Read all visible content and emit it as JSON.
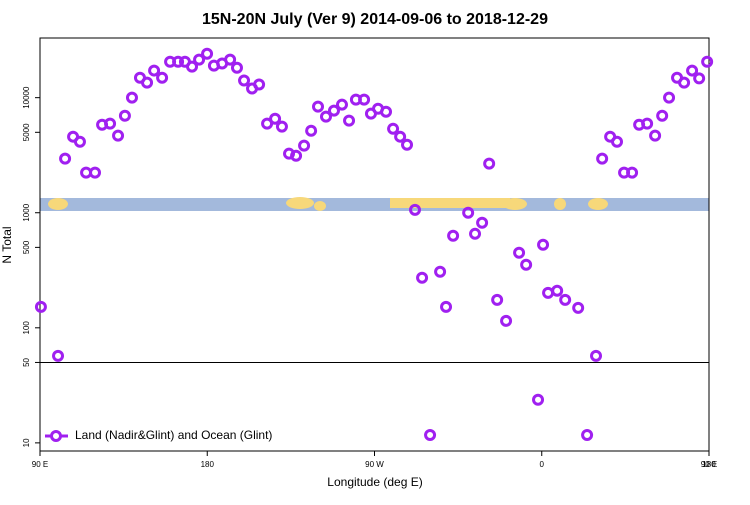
{
  "chart_data": {
    "type": "scatter",
    "title": "15N-20N July (Ver 9)   2014-09-06 to 2018-12-29",
    "x_label": "Longitude (deg E)",
    "y_label": "N Total",
    "log_y": true,
    "legend": "lower left",
    "reference_line": 50,
    "xlim": [
      90,
      450
    ],
    "xticks": [
      {
        "value": 90,
        "label": "90 E"
      },
      180,
      {
        "value": 270,
        "label": "90 W"
      },
      {
        "value": 360,
        "label": "0"
      },
      {
        "value": 450,
        "label": "90 E"
      },
      {
        "value": 540,
        "label": "180"
      }
    ],
    "ylim": [
      8.5,
      33000
    ],
    "yticks": [
      10,
      50,
      100,
      500,
      1000,
      5000,
      10000
    ],
    "series": [
      {
        "name": "Land (Nadir&Glint) and Ocean (Glint)",
        "color": "#a020f0",
        "x": [
          90.5,
          99.7,
          103.5,
          107.8,
          111.5,
          114.8,
          119.6,
          123.4,
          127.7,
          132,
          135.7,
          139.5,
          143.8,
          147.6,
          151.4,
          155.7,
          160,
          164.3,
          168,
          171.8,
          175.6,
          179.9,
          183.6,
          188,
          192.3,
          196,
          199.8,
          204.1,
          207.9,
          212.2,
          216.5,
          220.2,
          224,
          227.8,
          232.1,
          235.9,
          239.6,
          243.9,
          248.2,
          252.5,
          256.3,
          260,
          264.4,
          268.1,
          271.9,
          276.2,
          280,
          283.8,
          287.5,
          291.8,
          295.6,
          299.9,
          305.3,
          308.5,
          312.3,
          320.4,
          324.1,
          327.9,
          331.7,
          336,
          340.8,
          347.8,
          351.6,
          358,
          360.7,
          363.4,
          368.3,
          372.6,
          379.6,
          384.4,
          389.2,
          392.5,
          396.8,
          400.5,
          404.3,
          408.6,
          412.4,
          416.7,
          421,
          424.8,
          428.5,
          432.8,
          436.6,
          440.9,
          444.7,
          449
        ],
        "values": [
          152,
          57,
          2950,
          4580,
          4140,
          2230,
          2230,
          5820,
          5950,
          4680,
          6970,
          10000,
          14900,
          13500,
          17200,
          14900,
          20500,
          20500,
          20500,
          18600,
          21400,
          24100,
          19000,
          19800,
          21400,
          18200,
          14100,
          12000,
          13000,
          5950,
          6560,
          5600,
          3260,
          3130,
          3830,
          5160,
          8350,
          6840,
          7710,
          8690,
          6310,
          9610,
          9610,
          7260,
          8020,
          7550,
          5370,
          4580,
          3900,
          1060,
          272,
          11.7,
          307,
          152,
          631,
          1000,
          656,
          818,
          2670,
          175,
          115,
          449,
          353,
          23.7,
          527,
          201,
          210,
          175,
          149,
          11.7,
          57,
          2950,
          4580,
          4140,
          2230,
          2230,
          5820,
          5950,
          4680,
          6970,
          10000,
          14900,
          13500,
          17200,
          14700,
          20500
        ]
      }
    ]
  }
}
